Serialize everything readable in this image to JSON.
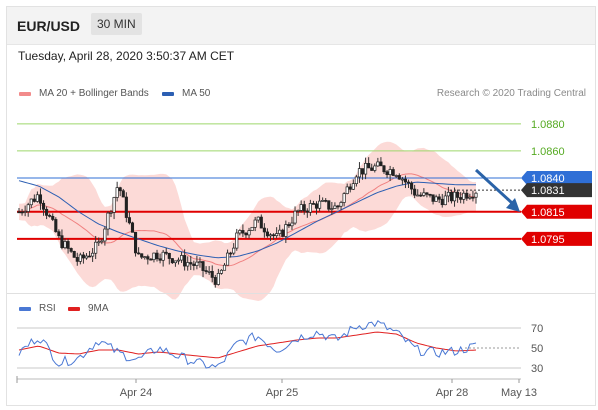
{
  "header": {
    "pair": "EUR/USD",
    "timeframe": "30 MIN"
  },
  "datetime": "Tuesday, April 28, 2020 3:50:37 AM CET",
  "legend": {
    "items": [
      {
        "label": "MA 20 + Bollinger Bands",
        "color": "#f28b8b"
      },
      {
        "label": "MA 50",
        "color": "#2c5fb3"
      }
    ],
    "credit": "Research © 2020 Trading Central",
    "rsi_items": [
      {
        "label": "RSI",
        "color": "#4a78d4"
      },
      {
        "label": "9MA",
        "color": "#e02020"
      }
    ]
  },
  "chart_data": [
    {
      "type": "line",
      "title": "",
      "x_ticks": [
        "Apr 24",
        "Apr 25",
        "Apr 28",
        "May 13"
      ],
      "ylim": [
        1.0755,
        1.0905
      ],
      "price_levels": [
        {
          "value": 1.088,
          "label": "1.0880",
          "kind": "target",
          "color": "#55aa22"
        },
        {
          "value": 1.086,
          "label": "1.0860",
          "kind": "target",
          "color": "#55aa22"
        },
        {
          "value": 1.084,
          "label": "1.0840",
          "kind": "resistance",
          "color": "#2f6fd6"
        },
        {
          "value": 1.0831,
          "label": "1.0831",
          "kind": "last price",
          "color": "#333333"
        },
        {
          "value": 1.0815,
          "label": "1.0815",
          "kind": "support",
          "color": "#e00000"
        },
        {
          "value": 1.0795,
          "label": "1.0795",
          "kind": "support",
          "color": "#e00000"
        }
      ],
      "series": [
        {
          "name": "Price",
          "x": [
            "Apr 23",
            "Apr 23",
            "Apr 23",
            "Apr 24",
            "Apr 24",
            "Apr 24",
            "Apr 24",
            "Apr 24",
            "Apr 24",
            "Apr 24",
            "Apr 24",
            "Apr 25",
            "Apr 25",
            "Apr 25",
            "Apr 25",
            "Apr 25",
            "Apr 27",
            "Apr 27",
            "Apr 27",
            "Apr 27",
            "Apr 27",
            "Apr 28",
            "Apr 28",
            "Apr 28"
          ],
          "values": [
            1.0815,
            1.0828,
            1.0795,
            1.0778,
            1.079,
            1.0836,
            1.0781,
            1.0784,
            1.078,
            1.0775,
            1.0764,
            1.0797,
            1.0808,
            1.0795,
            1.0815,
            1.0821,
            1.0818,
            1.0845,
            1.0848,
            1.0845,
            1.0828,
            1.0824,
            1.0826,
            1.0831
          ]
        },
        {
          "name": "MA 50",
          "values": [
            1.0838,
            1.0834,
            1.0826,
            1.0815,
            1.0806,
            1.08,
            1.0795,
            1.079,
            1.0786,
            1.0783,
            1.0781,
            1.0782,
            1.0786,
            1.0792,
            1.08,
            1.0808,
            1.0815,
            1.0822,
            1.0829,
            1.0834,
            1.0837,
            1.0836,
            1.0835,
            1.0835
          ]
        }
      ],
      "annotation": "arrow pointing down toward 1.0795"
    },
    {
      "type": "line",
      "title": "",
      "ylim": [
        20,
        80
      ],
      "y_ticks": [
        70,
        50,
        30
      ],
      "series": [
        {
          "name": "RSI",
          "values": [
            45,
            62,
            35,
            40,
            58,
            45,
            38,
            50,
            42,
            35,
            30,
            55,
            62,
            48,
            60,
            66,
            58,
            72,
            75,
            65,
            48,
            45,
            47,
            52
          ]
        },
        {
          "name": "9MA",
          "values": [
            48,
            52,
            45,
            44,
            48,
            48,
            44,
            46,
            44,
            42,
            40,
            46,
            52,
            55,
            58,
            60,
            60,
            63,
            66,
            64,
            55,
            50,
            47,
            48
          ]
        }
      ]
    }
  ]
}
